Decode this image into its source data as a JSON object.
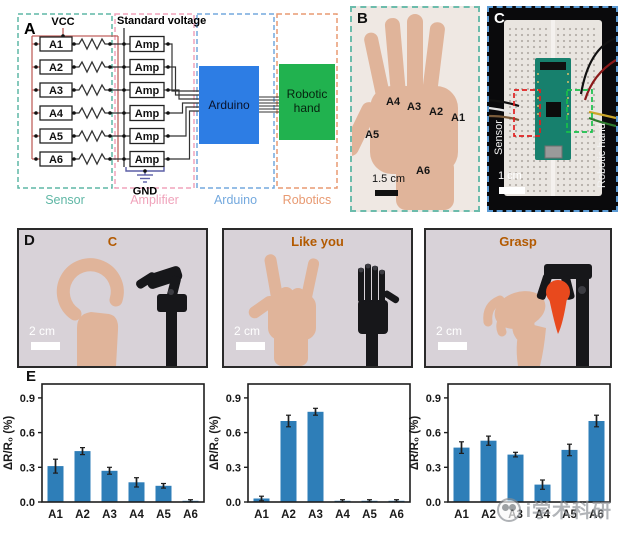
{
  "colors": {
    "bar_fill": "#2e7eb8",
    "arduino_box": "#2d7de4",
    "robotic_box": "#21b24f",
    "sensor_section": "#5fb7a5",
    "amplifier_section": "#f0a3bb",
    "arduino_section": "#74a9de",
    "robotics_section": "#e89a72",
    "gesture_title": "#b35a00",
    "skin": "#e0b49a"
  },
  "panelA": {
    "label": "A",
    "vcc_label": "VCC",
    "standard_voltage_label": "Standard voltage",
    "gnd_label": "GND",
    "sensor_channels": [
      "A1",
      "A2",
      "A3",
      "A4",
      "A5",
      "A6"
    ],
    "amp_label": "Amp",
    "arduino_label": "Arduino",
    "robotic_hand_label_line1": "Robotic",
    "robotic_hand_label_line2": "hand",
    "sections": [
      {
        "label": "Sensor"
      },
      {
        "label": "Amplifier"
      },
      {
        "label": "Arduino"
      },
      {
        "label": "Robotics"
      }
    ]
  },
  "panelB": {
    "label": "B",
    "annotations": [
      "A1",
      "A2",
      "A3",
      "A4",
      "A5",
      "A6"
    ],
    "scale_label": "1.5 cm"
  },
  "panelC": {
    "label": "C",
    "sensor_side_label": "Sensor",
    "robotic_side_label": "Robotic hand",
    "scale_label": "1 cm"
  },
  "panelD": {
    "label": "D",
    "gestures": [
      {
        "title": "C",
        "scale_label": "2 cm"
      },
      {
        "title": "Like you",
        "scale_label": "2 cm"
      },
      {
        "title": "Grasp",
        "scale_label": "2 cm"
      }
    ]
  },
  "panelE": {
    "label": "E"
  },
  "chart_data": [
    {
      "type": "bar",
      "gesture": "C",
      "categories": [
        "A1",
        "A2",
        "A3",
        "A4",
        "A5",
        "A6"
      ],
      "values": [
        0.31,
        0.44,
        0.27,
        0.17,
        0.14,
        0.01
      ],
      "errors": [
        0.06,
        0.03,
        0.03,
        0.04,
        0.02,
        0.01
      ],
      "ylabel": "ΔR/R₀ (%)",
      "xlabel": "",
      "ylim": [
        0,
        1.0
      ],
      "yticks": [
        0.0,
        0.3,
        0.6,
        0.9
      ],
      "grid": false,
      "legend": "none"
    },
    {
      "type": "bar",
      "gesture": "Like you",
      "categories": [
        "A1",
        "A2",
        "A3",
        "A4",
        "A5",
        "A6"
      ],
      "values": [
        0.03,
        0.7,
        0.78,
        0.01,
        0.01,
        0.01
      ],
      "errors": [
        0.02,
        0.05,
        0.03,
        0.01,
        0.01,
        0.01
      ],
      "ylabel": "ΔR/R₀ (%)",
      "xlabel": "",
      "ylim": [
        0,
        1.0
      ],
      "yticks": [
        0.0,
        0.3,
        0.6,
        0.9
      ],
      "grid": false,
      "legend": "none"
    },
    {
      "type": "bar",
      "gesture": "Grasp",
      "categories": [
        "A1",
        "A2",
        "A3",
        "A4",
        "A5",
        "A6"
      ],
      "values": [
        0.47,
        0.53,
        0.41,
        0.15,
        0.45,
        0.7
      ],
      "errors": [
        0.05,
        0.04,
        0.02,
        0.04,
        0.05,
        0.05
      ],
      "ylabel": "ΔR/R₀ (%)",
      "xlabel": "",
      "ylim": [
        0,
        1.0
      ],
      "yticks": [
        0.0,
        0.3,
        0.6,
        0.9
      ],
      "grid": false,
      "legend": "none"
    }
  ],
  "watermark": {
    "text": "i学术科研"
  }
}
